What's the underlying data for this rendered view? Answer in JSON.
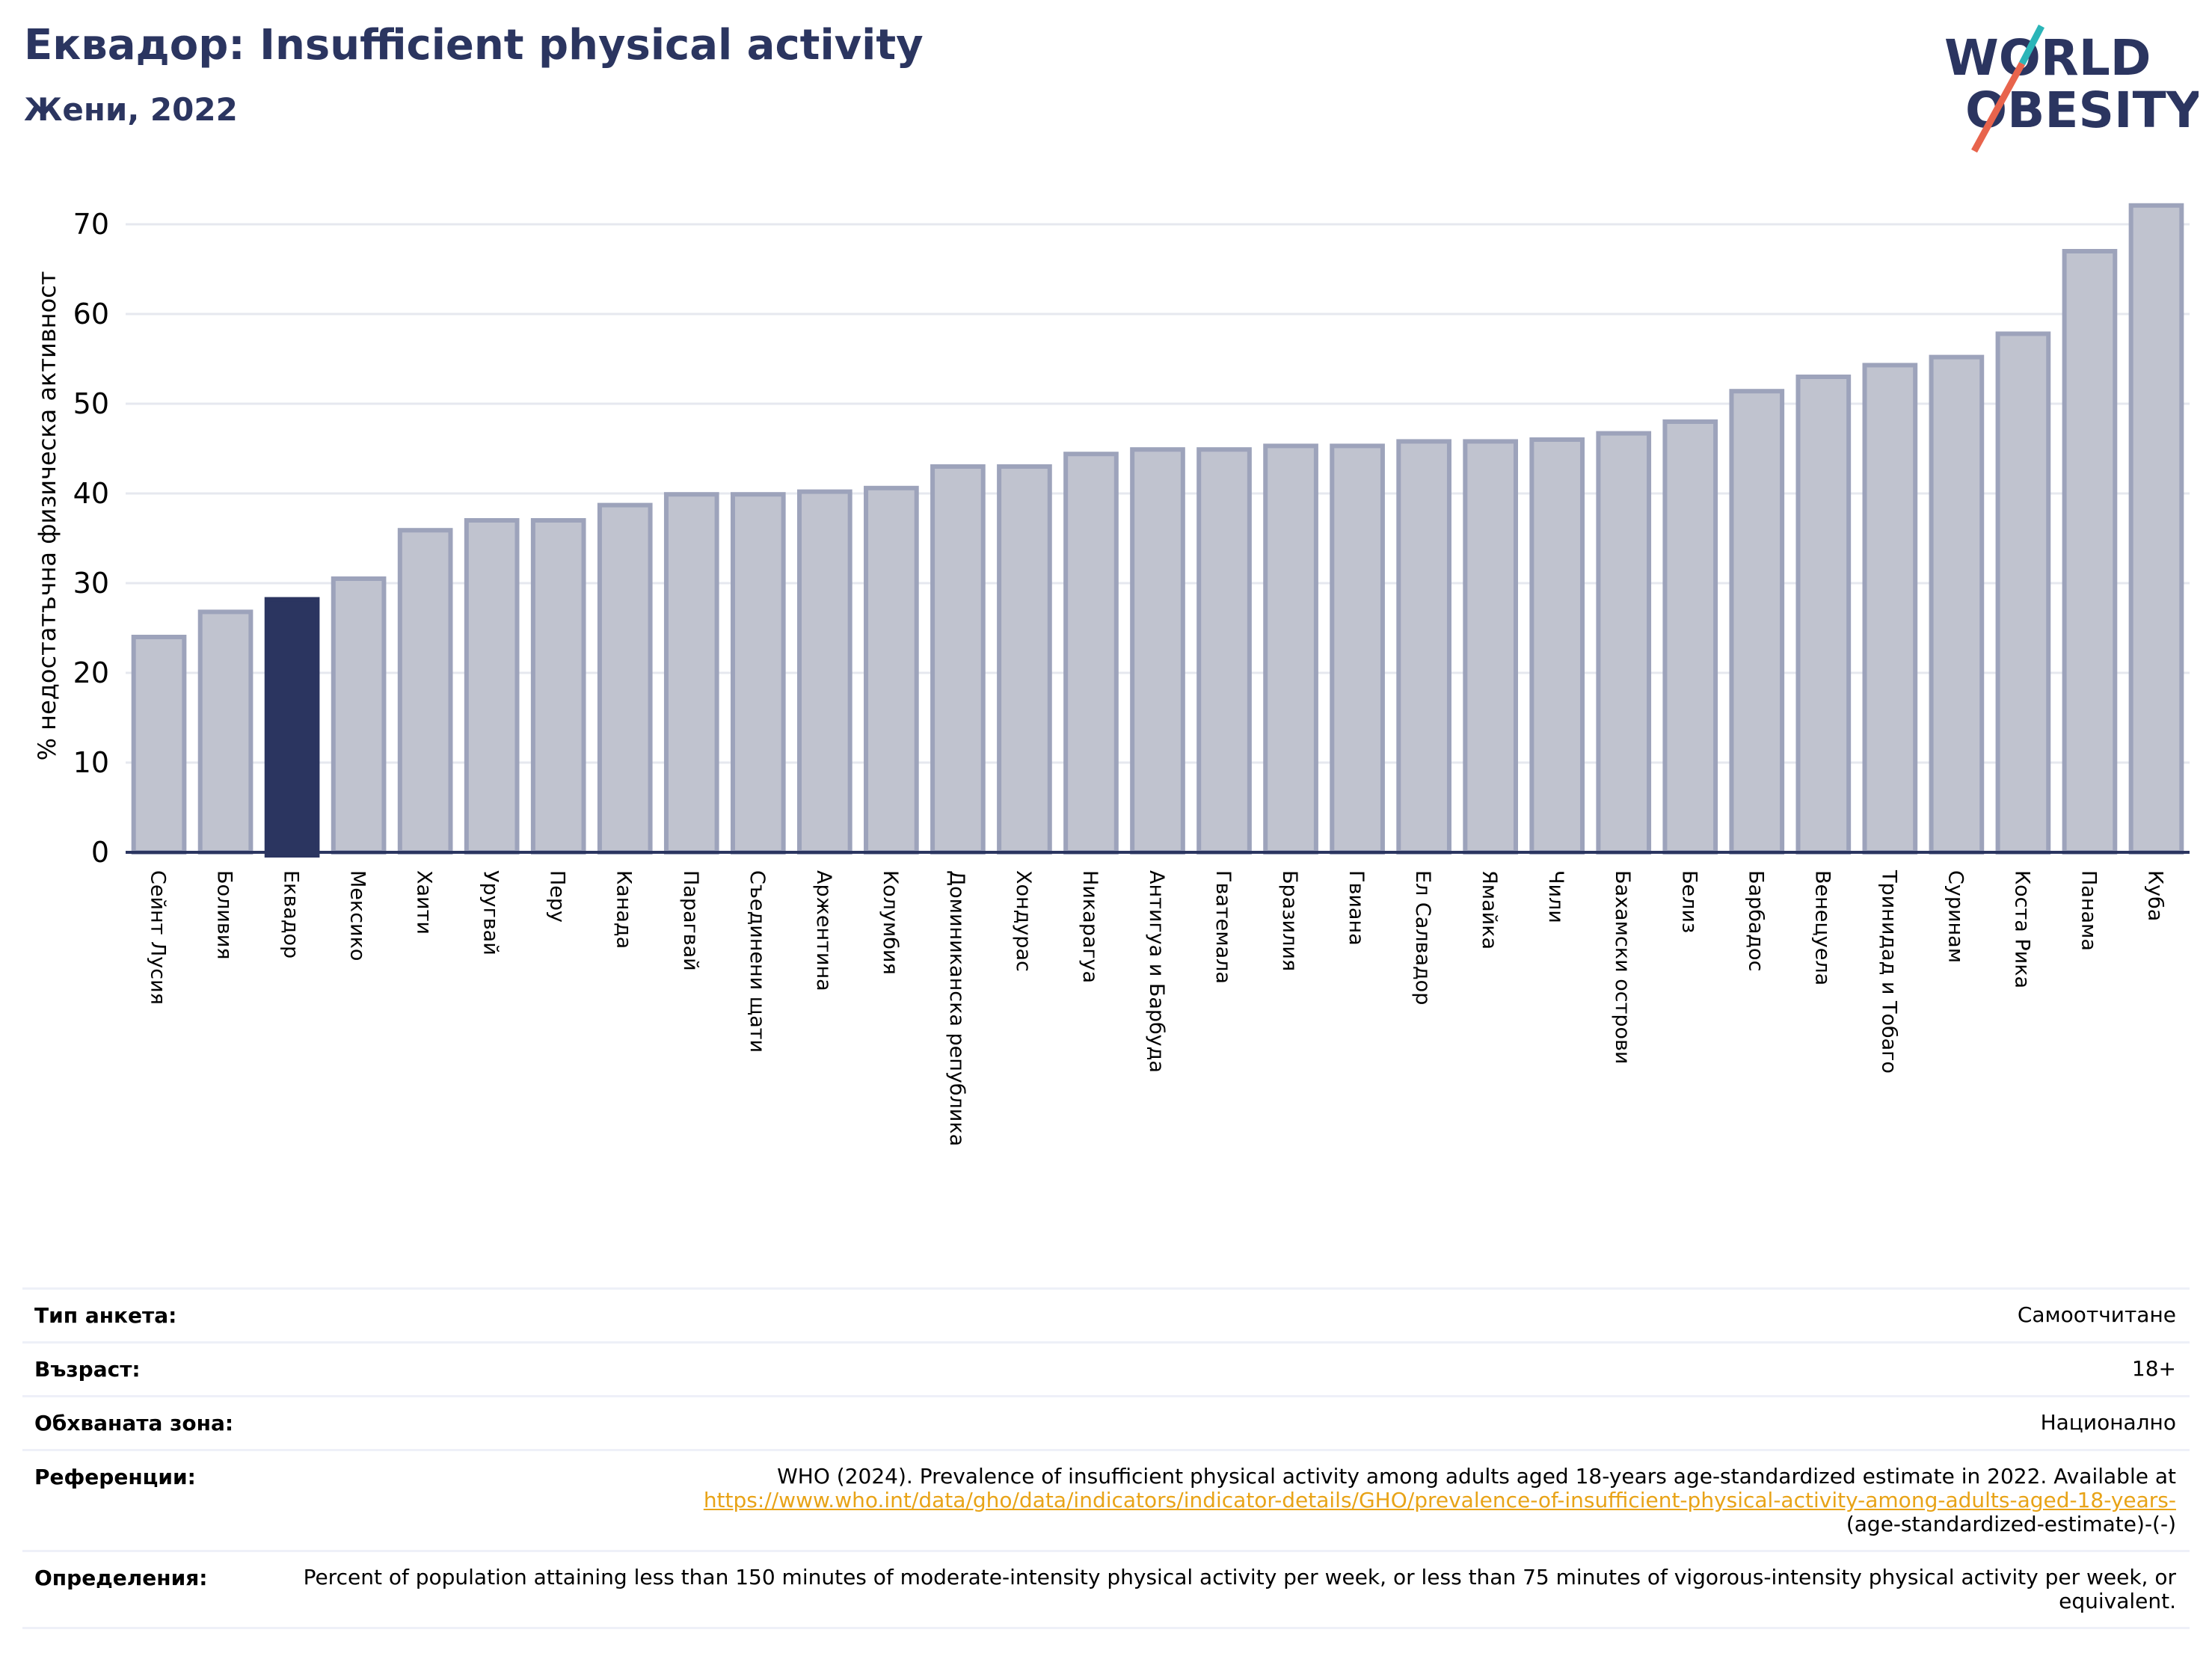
{
  "header": {
    "title": "Еквадор: Insufficient physical activity",
    "subtitle": "Жени, 2022"
  },
  "logo": {
    "line1": "WORLD",
    "line2": "OBESITY",
    "colors": {
      "text": "#2b3560",
      "slash_top": "#2bb5b8",
      "slash_bottom": "#e8644c"
    }
  },
  "chart_data": {
    "type": "bar",
    "title": "",
    "xlabel": "",
    "ylabel": "% недостатъчна физическа активност",
    "ylim": [
      0,
      75
    ],
    "yticks": [
      0,
      10,
      20,
      30,
      40,
      50,
      60,
      70
    ],
    "grid": true,
    "highlight": "Еквадор",
    "colors": {
      "bar": "#c0c3cf",
      "bar_edge": "#9da3bb",
      "highlight": "#2b3560",
      "grid": "#e6e8ef",
      "axis": "#2b3560"
    },
    "categories": [
      "Сейнт Лусия",
      "Боливия",
      "Еквадор",
      "Мексико",
      "Хаити",
      "Уругвай",
      "Перу",
      "Канада",
      "Парагвай",
      "Съединени щати",
      "Аржентина",
      "Колумбия",
      "Доминиканска република",
      "Хондурас",
      "Никарагуа",
      "Антигуа и Барбуда",
      "Гватемала",
      "Бразилия",
      "Гвиана",
      "Ел Салвадор",
      "Ямайка",
      "Чили",
      "Бахамски острови",
      "Белиз",
      "Барбадос",
      "Венецуела",
      "Тринидад и Тобаго",
      "Суринам",
      "Коста Рика",
      "Панама",
      "Куба"
    ],
    "values": [
      24.0,
      26.8,
      28.2,
      30.5,
      35.9,
      37.0,
      37.0,
      38.7,
      39.9,
      39.9,
      40.2,
      40.6,
      43.0,
      43.0,
      44.4,
      44.9,
      44.9,
      45.3,
      45.3,
      45.8,
      45.8,
      46.0,
      46.7,
      48.0,
      51.4,
      53.0,
      54.3,
      55.2,
      57.8,
      67.0,
      72.1
    ]
  },
  "info": {
    "survey_label": "Тип анкета:",
    "survey_value": "Самоотчитане",
    "age_label": "Възраст:",
    "age_value": "18+",
    "area_label": "Обхваната зона:",
    "area_value": "Национално",
    "refs_label": "Референции:",
    "refs_text": "WHO (2024). Prevalence of insufficient physical activity among adults aged 18-years age-standardized estimate in 2022. Available at",
    "refs_link": "https://www.who.int/data/gho/data/indicators/indicator-details/GHO/prevalence-of-insufficient-physical-activity-among-adults-aged-18-years-",
    "refs_tail": "(age-standardized-estimate)-(-)",
    "defs_label": "Определения:",
    "defs_text": "Percent of population attaining less than 150 minutes of moderate-intensity physical activity per week, or less than 75 minutes of vigorous-intensity physical activity per week, or equivalent."
  }
}
